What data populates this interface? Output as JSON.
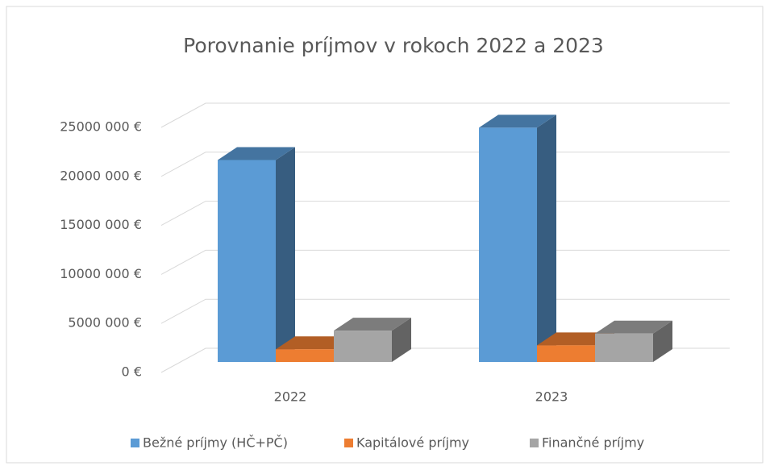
{
  "chart_data": {
    "type": "bar3d",
    "title": "Porovnanie príjmov v rokoch 2022 a 2023",
    "categories": [
      "2022",
      "2023"
    ],
    "series": [
      {
        "name": "Bežné príjmy (HČ+PČ)",
        "color": "#5b9bd5",
        "values": [
          20600000,
          23900000
        ]
      },
      {
        "name": "Kapitálové príjmy",
        "color": "#ed7d31",
        "values": [
          1300000,
          1700000
        ]
      },
      {
        "name": "Finančné príjmy",
        "color": "#a5a5a5",
        "values": [
          3200000,
          2900000
        ]
      }
    ],
    "ylim": [
      0,
      25000000
    ],
    "yticks": [
      {
        "value": 0,
        "label": "0 €"
      },
      {
        "value": 5000000,
        "label": "5000 000 €"
      },
      {
        "value": 10000000,
        "label": "10000 000 €"
      },
      {
        "value": 15000000,
        "label": "15000 000 €"
      },
      {
        "value": 20000000,
        "label": "20000 000 €"
      },
      {
        "value": 25000000,
        "label": "25000 000 €"
      }
    ],
    "grid": true,
    "legend": "bottom"
  }
}
